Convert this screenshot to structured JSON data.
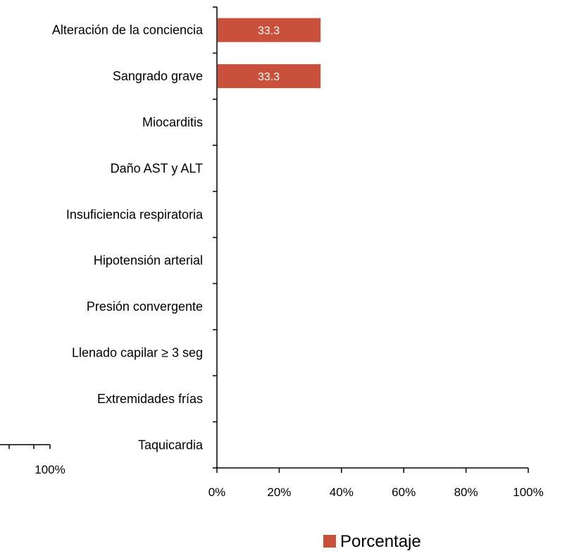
{
  "chart_data": [
    {
      "type": "bar",
      "orientation": "horizontal",
      "categories": [
        "Alteración de la conciencia",
        "Sangrado grave",
        "Miocarditis",
        "Daño AST y ALT",
        "Insuficiencia respiratoria",
        "Hipotensión arterial",
        "Presión convergente",
        "Llenado capilar ≥ 3 seg",
        "Extremidades frías",
        "Taquicardia"
      ],
      "series": [
        {
          "name": "Porcentaje",
          "color": "#C9503A",
          "values": [
            33.3,
            33.3,
            0,
            0,
            0,
            0,
            0,
            0,
            0,
            0
          ],
          "data_labels": [
            "33.3",
            "33.3",
            "",
            "",
            "",
            "",
            "",
            "",
            "",
            ""
          ]
        }
      ],
      "xlim": [
        0,
        100
      ],
      "x_ticks": [
        "0%",
        "20%",
        "40%",
        "60%",
        "80%",
        "100%"
      ],
      "grid": false,
      "legend": {
        "position": "bottom-right",
        "entries": [
          "Porcentaje"
        ]
      }
    },
    {
      "type": "bar",
      "partial": true,
      "x_ticks": [
        "100%"
      ]
    }
  ]
}
